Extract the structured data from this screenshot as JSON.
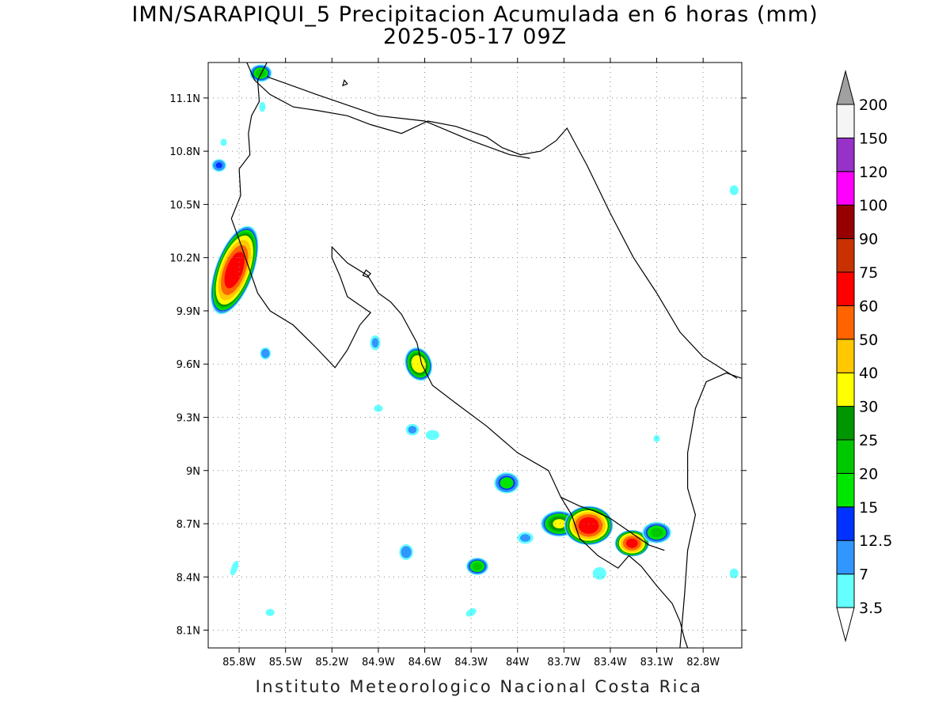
{
  "title": {
    "line1": "IMN/SARAPIQUI_5 Precipitacion Acumulada en 6 horas (mm)",
    "line2": "2025-05-17 09Z"
  },
  "footer": "Instituto Meteorologico Nacional Costa Rica",
  "map": {
    "lon_range": [
      -86.0,
      -82.55
    ],
    "lat_range": [
      8.0,
      11.3
    ],
    "x_ticks": [
      "85.8W",
      "85.5W",
      "85.2W",
      "84.9W",
      "84.6W",
      "84.3W",
      "84W",
      "83.7W",
      "83.4W",
      "83.1W",
      "82.8W"
    ],
    "x_tick_values": [
      -85.8,
      -85.5,
      -85.2,
      -84.9,
      -84.6,
      -84.3,
      -84.0,
      -83.7,
      -83.4,
      -83.1,
      -82.8
    ],
    "y_ticks": [
      "11.1N",
      "10.8N",
      "10.5N",
      "10.2N",
      "9.9N",
      "9.6N",
      "9.3N",
      "9N",
      "8.7N",
      "8.4N",
      "8.1N"
    ],
    "y_tick_values": [
      11.1,
      10.8,
      10.5,
      10.2,
      9.9,
      9.6,
      9.3,
      9.0,
      8.7,
      8.4,
      8.1
    ],
    "grid": "dotted",
    "coastline": [
      [
        [
          -85.75,
          11.3
        ],
        [
          -85.7,
          11.2
        ],
        [
          -85.6,
          11.12
        ],
        [
          -85.45,
          11.05
        ],
        [
          -85.3,
          11.03
        ],
        [
          -85.1,
          11.0
        ],
        [
          -84.95,
          10.95
        ],
        [
          -84.75,
          10.9
        ],
        [
          -84.58,
          10.97
        ],
        [
          -84.4,
          10.94
        ],
        [
          -84.2,
          10.88
        ],
        [
          -84.1,
          10.82
        ],
        [
          -83.98,
          10.78
        ],
        [
          -83.85,
          10.8
        ],
        [
          -83.75,
          10.86
        ],
        [
          -83.68,
          10.93
        ],
        [
          -83.55,
          10.72
        ],
        [
          -83.4,
          10.45
        ],
        [
          -83.25,
          10.2
        ],
        [
          -83.1,
          10.0
        ],
        [
          -82.95,
          9.78
        ],
        [
          -82.8,
          9.64
        ],
        [
          -82.58,
          9.52
        ]
      ],
      [
        [
          -85.62,
          11.3
        ],
        [
          -85.68,
          11.2
        ],
        [
          -85.67,
          11.08
        ],
        [
          -85.72,
          11.0
        ],
        [
          -85.74,
          10.9
        ],
        [
          -85.73,
          10.78
        ],
        [
          -85.8,
          10.7
        ],
        [
          -85.79,
          10.55
        ],
        [
          -85.85,
          10.42
        ],
        [
          -85.8,
          10.3
        ],
        [
          -85.74,
          10.15
        ],
        [
          -85.68,
          10.0
        ],
        [
          -85.6,
          9.9
        ],
        [
          -85.45,
          9.82
        ],
        [
          -85.3,
          9.69
        ],
        [
          -85.18,
          9.58
        ],
        [
          -85.1,
          9.68
        ],
        [
          -85.02,
          9.82
        ],
        [
          -84.95,
          9.89
        ],
        [
          -85.1,
          9.98
        ],
        [
          -85.15,
          10.1
        ],
        [
          -85.2,
          10.2
        ],
        [
          -85.2,
          10.26
        ],
        [
          -85.1,
          10.17
        ],
        [
          -84.97,
          10.1
        ],
        [
          -84.9,
          10.0
        ],
        [
          -84.82,
          9.95
        ],
        [
          -84.75,
          9.88
        ],
        [
          -84.7,
          9.8
        ],
        [
          -84.65,
          9.72
        ],
        [
          -84.62,
          9.6
        ],
        [
          -84.55,
          9.48
        ],
        [
          -84.4,
          9.38
        ],
        [
          -84.2,
          9.25
        ],
        [
          -84.0,
          9.1
        ],
        [
          -83.8,
          9.0
        ],
        [
          -83.72,
          8.85
        ],
        [
          -83.65,
          8.75
        ],
        [
          -83.6,
          8.62
        ],
        [
          -83.48,
          8.52
        ],
        [
          -83.35,
          8.45
        ],
        [
          -83.28,
          8.52
        ],
        [
          -83.2,
          8.46
        ],
        [
          -83.1,
          8.35
        ],
        [
          -83.0,
          8.25
        ],
        [
          -82.95,
          8.15
        ],
        [
          -82.92,
          8.05
        ],
        [
          -82.9,
          8.0
        ]
      ]
    ],
    "border_lines": [
      [
        [
          -85.62,
          11.22
        ],
        [
          -85.3,
          11.12
        ],
        [
          -84.9,
          11.0
        ],
        [
          -84.6,
          10.97
        ],
        [
          -84.3,
          10.86
        ],
        [
          -84.05,
          10.78
        ],
        [
          -83.92,
          10.76
        ]
      ],
      [
        [
          -82.55,
          9.52
        ],
        [
          -82.65,
          9.55
        ],
        [
          -82.78,
          9.5
        ],
        [
          -82.85,
          9.35
        ],
        [
          -82.9,
          9.1
        ],
        [
          -82.9,
          8.9
        ],
        [
          -82.85,
          8.75
        ],
        [
          -82.9,
          8.55
        ],
        [
          -82.92,
          8.3
        ],
        [
          -82.95,
          8.0
        ]
      ],
      [
        [
          -83.72,
          8.85
        ],
        [
          -83.6,
          8.8
        ],
        [
          -83.5,
          8.77
        ],
        [
          -83.4,
          8.73
        ],
        [
          -83.25,
          8.64
        ],
        [
          -83.15,
          8.58
        ],
        [
          -83.05,
          8.55
        ]
      ]
    ],
    "islands": [
      [
        [
          -84.98,
          10.13
        ],
        [
          -84.95,
          10.11
        ],
        [
          -84.97,
          10.09
        ],
        [
          -85.0,
          10.1
        ],
        [
          -84.98,
          10.13
        ]
      ],
      [
        [
          -85.12,
          11.2
        ],
        [
          -85.1,
          11.18
        ],
        [
          -85.13,
          11.17
        ],
        [
          -85.12,
          11.2
        ]
      ]
    ]
  },
  "colorbar": {
    "levels": [
      "3.5",
      "7",
      "12.5",
      "15",
      "20",
      "25",
      "30",
      "40",
      "50",
      "60",
      "75",
      "90",
      "100",
      "120",
      "150",
      "200"
    ],
    "colors": [
      "#64ffff",
      "#3296ff",
      "#0032ff",
      "#00e600",
      "#00c800",
      "#009600",
      "#ffff00",
      "#ffc800",
      "#ff6400",
      "#ff0000",
      "#c83200",
      "#960000",
      "#ff00ff",
      "#9632c8",
      "#f5f5f5",
      "#a0a0a0"
    ]
  },
  "precip_cells": [
    {
      "lon": -85.83,
      "lat": 10.13,
      "peak": 70,
      "rx": 0.1,
      "ry": 0.22,
      "rot": 20
    },
    {
      "lon": -85.63,
      "lat": 9.66,
      "peak": 10,
      "rx": 0.03,
      "ry": 0.03,
      "rot": 0
    },
    {
      "lon": -85.66,
      "lat": 11.24,
      "peak": 22,
      "rx": 0.06,
      "ry": 0.04,
      "rot": 0
    },
    {
      "lon": -85.93,
      "lat": 10.72,
      "peak": 13,
      "rx": 0.04,
      "ry": 0.03,
      "rot": 0
    },
    {
      "lon": -84.64,
      "lat": 9.6,
      "peak": 38,
      "rx": 0.07,
      "ry": 0.08,
      "rot": -20
    },
    {
      "lon": -84.92,
      "lat": 9.72,
      "peak": 8,
      "rx": 0.03,
      "ry": 0.04,
      "rot": 0
    },
    {
      "lon": -84.68,
      "lat": 9.23,
      "peak": 8,
      "rx": 0.04,
      "ry": 0.03,
      "rot": 0
    },
    {
      "lon": -84.55,
      "lat": 9.2,
      "peak": 5,
      "rx": 0.05,
      "ry": 0.03,
      "rot": 0
    },
    {
      "lon": -84.07,
      "lat": 8.93,
      "peak": 18,
      "rx": 0.07,
      "ry": 0.05,
      "rot": 0
    },
    {
      "lon": -83.73,
      "lat": 8.7,
      "peak": 32,
      "rx": 0.1,
      "ry": 0.06,
      "rot": 0
    },
    {
      "lon": -83.54,
      "lat": 8.69,
      "peak": 70,
      "rx": 0.13,
      "ry": 0.09,
      "rot": 0
    },
    {
      "lon": -83.26,
      "lat": 8.59,
      "peak": 65,
      "rx": 0.09,
      "ry": 0.06,
      "rot": 0
    },
    {
      "lon": -83.1,
      "lat": 8.65,
      "peak": 22,
      "rx": 0.08,
      "ry": 0.05,
      "rot": 0
    },
    {
      "lon": -84.26,
      "lat": 8.46,
      "peak": 22,
      "rx": 0.06,
      "ry": 0.04,
      "rot": 0
    },
    {
      "lon": -84.72,
      "lat": 8.54,
      "peak": 10,
      "rx": 0.04,
      "ry": 0.04,
      "rot": 0
    },
    {
      "lon": -83.95,
      "lat": 8.62,
      "peak": 8,
      "rx": 0.05,
      "ry": 0.03,
      "rot": 0
    },
    {
      "lon": -83.47,
      "lat": 8.42,
      "peak": 5,
      "rx": 0.05,
      "ry": 0.04,
      "rot": 0
    },
    {
      "lon": -82.6,
      "lat": 10.58,
      "peak": 5,
      "rx": 0.03,
      "ry": 0.03,
      "rot": 0
    },
    {
      "lon": -82.6,
      "lat": 8.42,
      "peak": 5,
      "rx": 0.03,
      "ry": 0.03,
      "rot": 0
    },
    {
      "lon": -85.83,
      "lat": 8.45,
      "peak": 5,
      "rx": 0.02,
      "ry": 0.05,
      "rot": 20
    },
    {
      "lon": -85.6,
      "lat": 8.2,
      "peak": 5,
      "rx": 0.03,
      "ry": 0.02,
      "rot": 0
    },
    {
      "lon": -84.3,
      "lat": 8.2,
      "peak": 5,
      "rx": 0.04,
      "ry": 0.02,
      "rot": -30
    },
    {
      "lon": -83.1,
      "lat": 9.18,
      "peak": 5,
      "rx": 0.02,
      "ry": 0.02,
      "rot": 0
    },
    {
      "lon": -85.9,
      "lat": 10.85,
      "peak": 5,
      "rx": 0.02,
      "ry": 0.02,
      "rot": 0
    },
    {
      "lon": -84.9,
      "lat": 9.35,
      "peak": 5,
      "rx": 0.03,
      "ry": 0.02,
      "rot": 0
    },
    {
      "lon": -85.65,
      "lat": 11.05,
      "peak": 5,
      "rx": 0.02,
      "ry": 0.03,
      "rot": 0
    }
  ]
}
